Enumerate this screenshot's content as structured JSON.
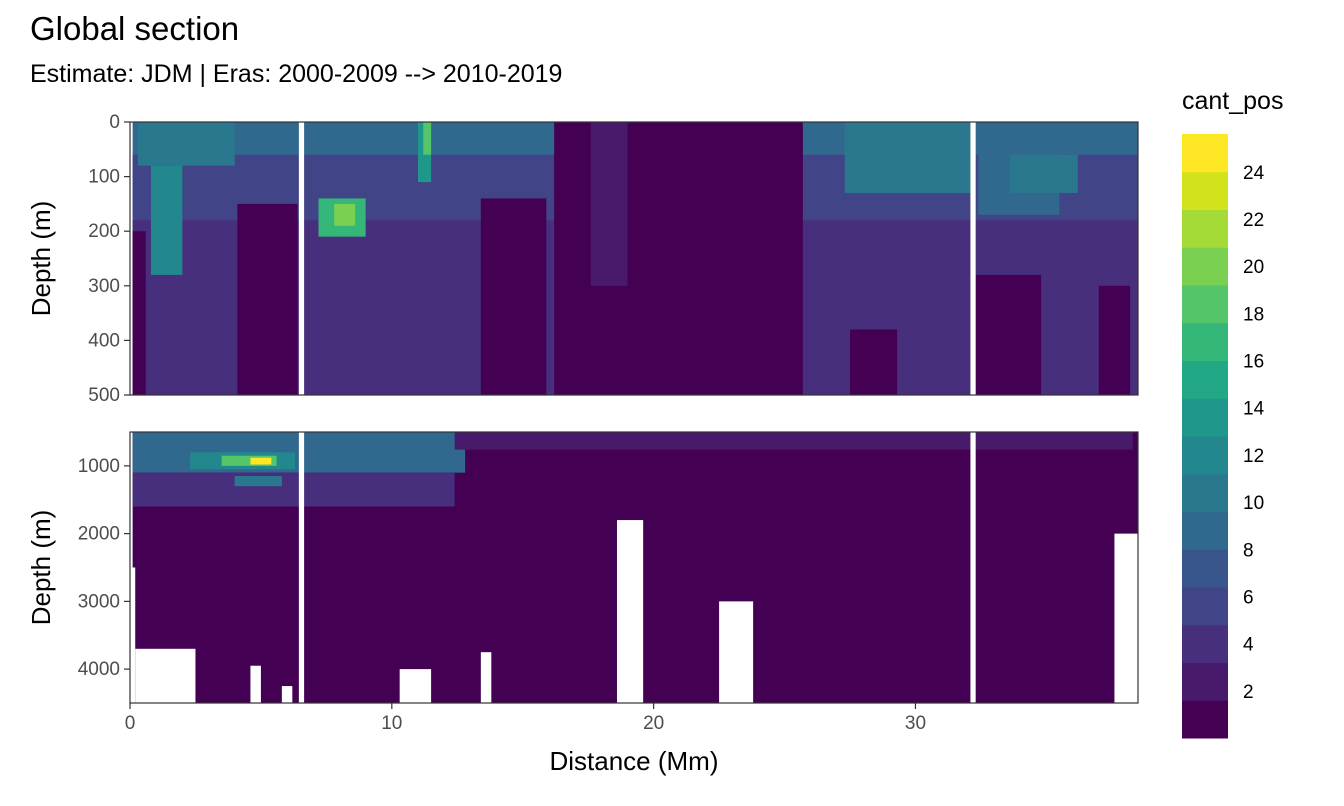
{
  "chart_data": {
    "type": "heatmap",
    "title": "Global section",
    "subtitle": "Estimate: JDM  | Eras: 2000-2009 --> 2010-2019",
    "xlabel": "Distance (Mm)",
    "ylabel": "Depth (m)",
    "x_ticks": [
      "0",
      "10",
      "20",
      "30"
    ],
    "xlim": [
      0,
      38.5
    ],
    "panels": [
      {
        "name": "upper",
        "ylim": [
          0,
          500
        ],
        "y_ticks": [
          "0",
          "100",
          "200",
          "300",
          "400",
          "500"
        ]
      },
      {
        "name": "lower",
        "ylim": [
          500,
          4500
        ],
        "y_ticks": [
          "1000",
          "2000",
          "3000",
          "4000"
        ]
      }
    ],
    "legend": {
      "title": "cant_pos",
      "position": "right",
      "labels": [
        "2",
        "4",
        "6",
        "8",
        "10",
        "12",
        "14",
        "16",
        "18",
        "20",
        "22",
        "24"
      ],
      "colors": [
        "#440154",
        "#481a6c",
        "#472f7d",
        "#414487",
        "#39568c",
        "#31688e",
        "#2a788e",
        "#23888e",
        "#1f988b",
        "#22a884",
        "#35b779",
        "#54c568",
        "#7ad151",
        "#a5db36",
        "#d2e21b",
        "#fde725"
      ]
    },
    "regions": [
      {
        "panel": "upper",
        "level": 8,
        "x": [
          0.1,
          38.5
        ],
        "y": [
          0,
          220
        ]
      },
      {
        "panel": "upper",
        "level": 6,
        "x": [
          0.1,
          38.5
        ],
        "y": [
          60,
          400
        ]
      },
      {
        "panel": "upper",
        "level": 4,
        "x": [
          0.1,
          38.5
        ],
        "y": [
          180,
          500
        ]
      },
      {
        "panel": "upper",
        "level": 1,
        "x": [
          16.2,
          25.7
        ],
        "y": [
          0,
          500
        ]
      },
      {
        "panel": "upper",
        "level": 3,
        "x": [
          17.6,
          19.0
        ],
        "y": [
          0,
          300
        ]
      },
      {
        "panel": "upper",
        "level": 1,
        "x": [
          13.4,
          15.9
        ],
        "y": [
          140,
          500
        ]
      },
      {
        "panel": "upper",
        "level": 1,
        "x": [
          4.1,
          6.4
        ],
        "y": [
          150,
          500
        ]
      },
      {
        "panel": "upper",
        "level": 1,
        "x": [
          0.1,
          0.6
        ],
        "y": [
          200,
          500
        ]
      },
      {
        "panel": "upper",
        "level": 1,
        "x": [
          32.3,
          34.8
        ],
        "y": [
          280,
          500
        ]
      },
      {
        "panel": "upper",
        "level": 1,
        "x": [
          37.0,
          38.2
        ],
        "y": [
          300,
          500
        ]
      },
      {
        "panel": "upper",
        "level": 1,
        "x": [
          27.5,
          29.3
        ],
        "y": [
          380,
          500
        ]
      },
      {
        "panel": "upper",
        "level": 10,
        "x": [
          0.3,
          4.0
        ],
        "y": [
          0,
          80
        ]
      },
      {
        "panel": "upper",
        "level": 12,
        "x": [
          0.8,
          2.0
        ],
        "y": [
          80,
          280
        ]
      },
      {
        "panel": "upper",
        "level": 10,
        "x": [
          27.3,
          32.1
        ],
        "y": [
          0,
          130
        ]
      },
      {
        "panel": "upper",
        "level": 8,
        "x": [
          32.4,
          35.5
        ],
        "y": [
          0,
          170
        ]
      },
      {
        "panel": "upper",
        "level": 10,
        "x": [
          33.6,
          36.2
        ],
        "y": [
          60,
          130
        ]
      },
      {
        "panel": "upper",
        "level": 16,
        "x": [
          7.2,
          9.0
        ],
        "y": [
          140,
          210
        ]
      },
      {
        "panel": "upper",
        "level": 20,
        "x": [
          7.8,
          8.6
        ],
        "y": [
          150,
          190
        ]
      },
      {
        "panel": "upper",
        "level": 14,
        "x": [
          11.0,
          11.5
        ],
        "y": [
          0,
          110
        ]
      },
      {
        "panel": "upper",
        "level": 18,
        "x": [
          11.2,
          11.5
        ],
        "y": [
          0,
          60
        ]
      },
      {
        "panel": "lower",
        "level": 1,
        "x": [
          0.1,
          38.5
        ],
        "y": [
          500,
          4500
        ]
      },
      {
        "panel": "lower",
        "level": 8,
        "x": [
          0.1,
          12.8
        ],
        "y": [
          500,
          1100
        ]
      },
      {
        "panel": "lower",
        "level": 4,
        "x": [
          0.1,
          12.4
        ],
        "y": [
          1100,
          1600
        ]
      },
      {
        "panel": "lower",
        "level": 3,
        "x": [
          12.4,
          38.3
        ],
        "y": [
          500,
          760
        ]
      },
      {
        "panel": "lower",
        "level": 12,
        "x": [
          2.3,
          6.3
        ],
        "y": [
          800,
          1050
        ]
      },
      {
        "panel": "lower",
        "level": 18,
        "x": [
          3.5,
          5.6
        ],
        "y": [
          850,
          1000
        ]
      },
      {
        "panel": "lower",
        "level": 24,
        "x": [
          4.6,
          5.4
        ],
        "y": [
          880,
          980
        ]
      },
      {
        "panel": "lower",
        "level": 10,
        "x": [
          4.0,
          5.8
        ],
        "y": [
          1150,
          1300
        ]
      }
    ],
    "gaps": [
      {
        "panel": "both",
        "x": [
          6.45,
          6.65
        ],
        "y": [
          0,
          4500
        ]
      },
      {
        "panel": "both",
        "x": [
          32.1,
          32.3
        ],
        "y": [
          0,
          4500
        ]
      },
      {
        "panel": "lower",
        "x": [
          0.0,
          0.2
        ],
        "y": [
          2500,
          4500
        ]
      },
      {
        "panel": "lower",
        "x": [
          0.2,
          2.5
        ],
        "y": [
          3700,
          4500
        ]
      },
      {
        "panel": "lower",
        "x": [
          4.6,
          5.0
        ],
        "y": [
          3950,
          4500
        ]
      },
      {
        "panel": "lower",
        "x": [
          5.8,
          6.2
        ],
        "y": [
          4250,
          4500
        ]
      },
      {
        "panel": "lower",
        "x": [
          10.3,
          11.5
        ],
        "y": [
          4000,
          4500
        ]
      },
      {
        "panel": "lower",
        "x": [
          13.4,
          13.8
        ],
        "y": [
          3750,
          4500
        ]
      },
      {
        "panel": "lower",
        "x": [
          18.6,
          19.6
        ],
        "y": [
          1800,
          4500
        ]
      },
      {
        "panel": "lower",
        "x": [
          22.5,
          23.8
        ],
        "y": [
          3000,
          4500
        ]
      },
      {
        "panel": "lower",
        "x": [
          37.6,
          38.5
        ],
        "y": [
          2000,
          4500
        ]
      }
    ]
  }
}
